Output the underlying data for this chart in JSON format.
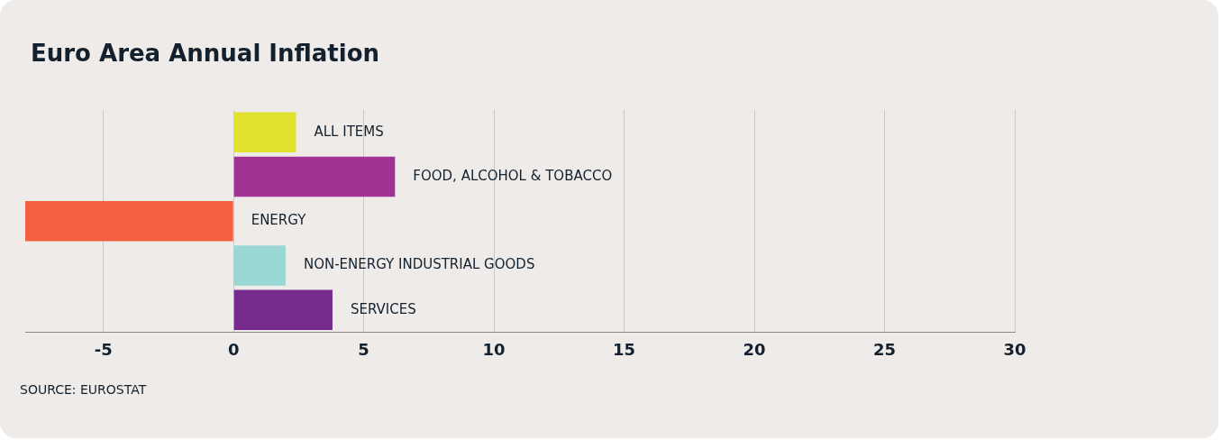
{
  "chart_data": {
    "type": "bar",
    "orientation": "horizontal",
    "title": "Euro Area Annual Inflation",
    "categories": [
      "ALL ITEMS",
      "FOOD, ALCOHOL & TOBACCO",
      "ENERGY",
      "NON-ENERGY INDUSTRIAL GOODS",
      "SERVICES"
    ],
    "values": [
      2.4,
      6.2,
      -8,
      2.0,
      3.8
    ],
    "colors": [
      "#e0e22e",
      "#a23293",
      "#f4603f",
      "#9ad8d5",
      "#772a8e"
    ],
    "xlim": [
      -8,
      30
    ],
    "xticks": [
      -5,
      0,
      5,
      10,
      15,
      20,
      25,
      30
    ],
    "grid": "x",
    "tick_labels": "x",
    "annotations": [
      "SOURCE: EUROSTAT"
    ]
  }
}
